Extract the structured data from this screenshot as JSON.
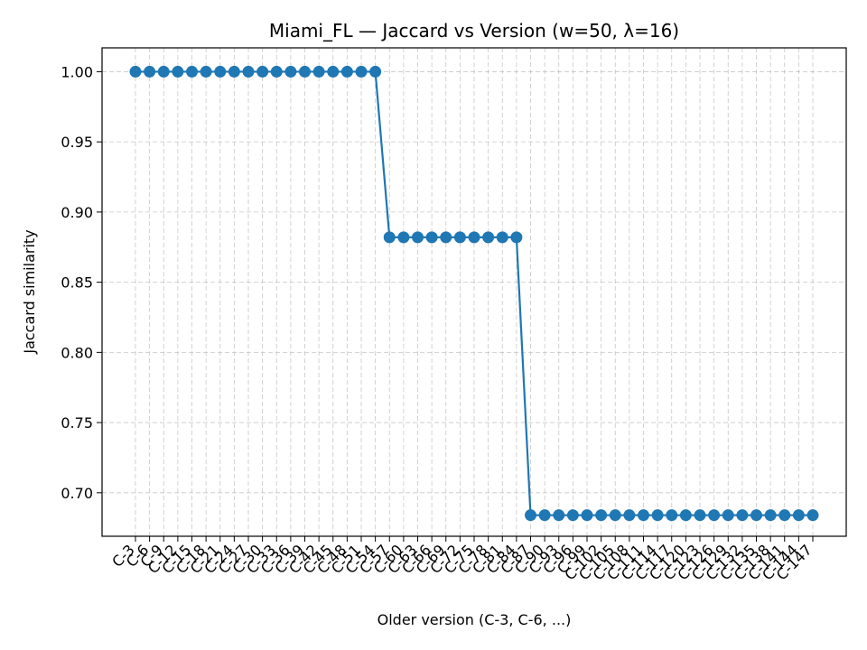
{
  "chart_data": {
    "type": "line",
    "title": "Miami_FL — Jaccard vs Version (w=50, λ=16)",
    "xlabel": "Older version (C-3, C-6, ...)",
    "ylabel": "Jaccard similarity",
    "ylim": [
      0.669,
      1.017
    ],
    "yticks": [
      "0.70",
      "0.75",
      "0.80",
      "0.85",
      "0.90",
      "0.95",
      "1.00"
    ],
    "grid": true,
    "grid_style": "dashed",
    "categories": [
      "C-3",
      "C-6",
      "C-9",
      "C-12",
      "C-15",
      "C-18",
      "C-21",
      "C-24",
      "C-27",
      "C-30",
      "C-33",
      "C-36",
      "C-39",
      "C-42",
      "C-45",
      "C-48",
      "C-51",
      "C-54",
      "C-57",
      "C-60",
      "C-63",
      "C-66",
      "C-69",
      "C-72",
      "C-75",
      "C-78",
      "C-81",
      "C-84",
      "C-87",
      "C-90",
      "C-93",
      "C-96",
      "C-99",
      "C-102",
      "C-105",
      "C-108",
      "C-111",
      "C-114",
      "C-117",
      "C-120",
      "C-123",
      "C-126",
      "C-129",
      "C-132",
      "C-135",
      "C-138",
      "C-141",
      "C-144",
      "C-147"
    ],
    "series": [
      {
        "color": "#1f77b4",
        "marker": "circle",
        "values": [
          1.0,
          1.0,
          1.0,
          1.0,
          1.0,
          1.0,
          1.0,
          1.0,
          1.0,
          1.0,
          1.0,
          1.0,
          1.0,
          1.0,
          1.0,
          1.0,
          1.0,
          1.0,
          0.882,
          0.882,
          0.882,
          0.882,
          0.882,
          0.882,
          0.882,
          0.882,
          0.882,
          0.882,
          0.684,
          0.684,
          0.684,
          0.684,
          0.684,
          0.684,
          0.684,
          0.684,
          0.684,
          0.684,
          0.684,
          0.684,
          0.684,
          0.684,
          0.684,
          0.684,
          0.684,
          0.684,
          0.684,
          0.684,
          0.684
        ]
      }
    ]
  }
}
